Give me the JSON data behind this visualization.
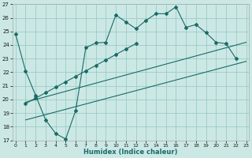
{
  "xlabel": "Humidex (Indice chaleur)",
  "xlim": [
    -0.3,
    23.3
  ],
  "ylim": [
    17,
    27
  ],
  "xticks": [
    0,
    1,
    2,
    3,
    4,
    5,
    6,
    7,
    8,
    9,
    10,
    11,
    12,
    13,
    14,
    15,
    16,
    17,
    18,
    19,
    20,
    21,
    22,
    23
  ],
  "yticks": [
    17,
    18,
    19,
    20,
    21,
    22,
    23,
    24,
    25,
    26,
    27
  ],
  "bg_color": "#cce8e5",
  "grid_color": "#99ccc8",
  "line_color": "#1a6b66",
  "curve1_x": [
    0,
    1,
    2,
    3,
    4,
    5,
    6,
    7,
    8,
    9,
    10,
    11,
    12,
    13,
    14,
    15,
    16,
    17,
    18,
    19,
    20,
    21,
    22
  ],
  "curve1_y": [
    24.8,
    22.1,
    20.3,
    18.5,
    17.5,
    17.1,
    19.2,
    23.8,
    24.15,
    24.2,
    26.2,
    25.7,
    25.2,
    25.8,
    26.3,
    26.3,
    26.8,
    25.3,
    25.5,
    24.9,
    24.2,
    24.1,
    23.0
  ],
  "curve2_x": [
    1,
    2,
    3,
    4,
    5,
    6,
    7,
    8,
    9,
    10,
    11,
    12,
    13,
    14,
    15,
    16,
    17,
    18,
    19,
    20,
    21,
    22,
    23
  ],
  "curve2_y": [
    19.7,
    20.1,
    20.5,
    20.9,
    21.3,
    21.7,
    22.1,
    22.5,
    22.9,
    23.3,
    23.7,
    24.1,
    null,
    null,
    null,
    null,
    null,
    null,
    null,
    null,
    null,
    null,
    null
  ],
  "trend1_x": [
    1,
    23
  ],
  "trend1_y": [
    18.5,
    22.8
  ],
  "trend2_x": [
    1,
    23
  ],
  "trend2_y": [
    19.8,
    24.2
  ]
}
